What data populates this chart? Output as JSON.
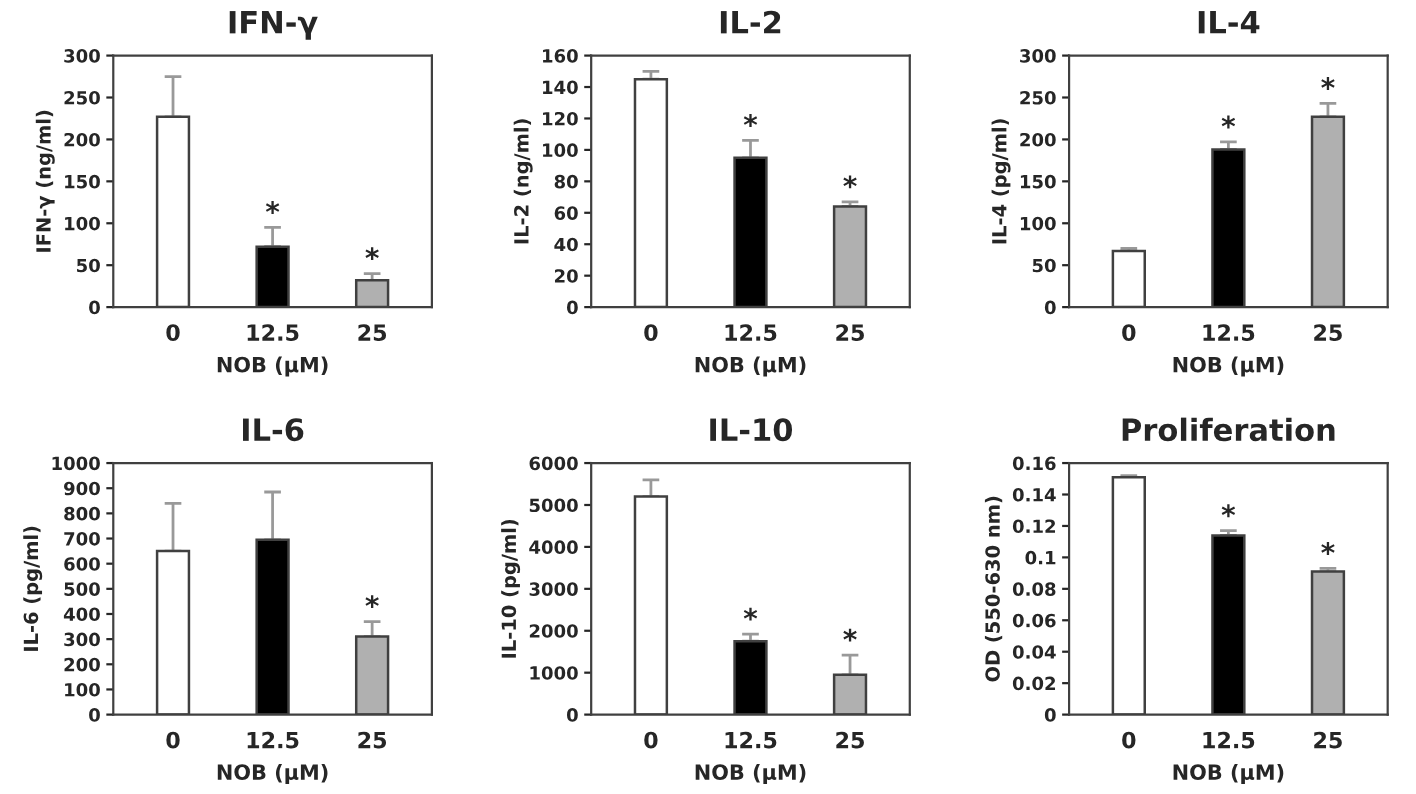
{
  "chart_data": [
    {
      "type": "bar",
      "title": "IFN-γ",
      "xlabel": "NOB (µM)",
      "ylabel": "IFN-γ (ng/ml)",
      "categories": [
        "0",
        "12.5",
        "25"
      ],
      "values": [
        227,
        72,
        32
      ],
      "errors": [
        [
          227,
          275
        ],
        [
          72,
          95
        ],
        [
          32,
          40
        ]
      ],
      "colors": [
        "#ffffff",
        "#000000",
        "#b0b0b0"
      ],
      "ylim": [
        0,
        300
      ],
      "yticks": [
        0,
        50,
        100,
        150,
        200,
        250,
        300
      ],
      "annotations": [
        {
          "text": "*",
          "x": "12.5",
          "y": 95
        },
        {
          "text": "*",
          "x": "25",
          "y": 40
        }
      ]
    },
    {
      "type": "bar",
      "title": "IL-2",
      "xlabel": "NOB (µM)",
      "ylabel": "IL-2 (ng/ml)",
      "categories": [
        "0",
        "12.5",
        "25"
      ],
      "values": [
        145,
        95,
        64
      ],
      "errors": [
        [
          145,
          150
        ],
        [
          95,
          106
        ],
        [
          64,
          67
        ]
      ],
      "colors": [
        "#ffffff",
        "#000000",
        "#b0b0b0"
      ],
      "ylim": [
        0,
        160
      ],
      "yticks": [
        0,
        20,
        40,
        60,
        80,
        100,
        120,
        140,
        160
      ],
      "annotations": [
        {
          "text": "*",
          "x": "12.5",
          "y": 106
        },
        {
          "text": "*",
          "x": "25",
          "y": 67
        }
      ]
    },
    {
      "type": "bar",
      "title": "IL-4",
      "xlabel": "NOB (µM)",
      "ylabel": "IL-4 (pg/ml)",
      "categories": [
        "0",
        "12.5",
        "25"
      ],
      "values": [
        67,
        188,
        227
      ],
      "errors": [
        [
          67,
          70
        ],
        [
          188,
          197
        ],
        [
          227,
          243
        ]
      ],
      "colors": [
        "#ffffff",
        "#000000",
        "#b0b0b0"
      ],
      "ylim": [
        0,
        300
      ],
      "yticks": [
        0,
        50,
        100,
        150,
        200,
        250,
        300
      ],
      "annotations": [
        {
          "text": "*",
          "x": "12.5",
          "y": 197
        },
        {
          "text": "*",
          "x": "25",
          "y": 243
        }
      ]
    },
    {
      "type": "bar",
      "title": "IL-6",
      "xlabel": "NOB (µM)",
      "ylabel": "IL-6 (pg/ml)",
      "categories": [
        "0",
        "12.5",
        "25"
      ],
      "values": [
        650,
        695,
        310
      ],
      "errors": [
        [
          650,
          840
        ],
        [
          695,
          885
        ],
        [
          310,
          370
        ]
      ],
      "colors": [
        "#ffffff",
        "#000000",
        "#b0b0b0"
      ],
      "ylim": [
        0,
        1000
      ],
      "yticks": [
        0,
        100,
        200,
        300,
        400,
        500,
        600,
        700,
        800,
        900,
        1000
      ],
      "annotations": [
        {
          "text": "*",
          "x": "25",
          "y": 370
        }
      ]
    },
    {
      "type": "bar",
      "title": "IL-10",
      "xlabel": "NOB (µM)",
      "ylabel": "IL-10 (pg/ml)",
      "categories": [
        "0",
        "12.5",
        "25"
      ],
      "values": [
        5200,
        1750,
        950
      ],
      "errors": [
        [
          5200,
          5600
        ],
        [
          1750,
          1920
        ],
        [
          950,
          1420
        ]
      ],
      "colors": [
        "#ffffff",
        "#000000",
        "#b0b0b0"
      ],
      "ylim": [
        0,
        6000
      ],
      "yticks": [
        0,
        1000,
        2000,
        3000,
        4000,
        5000,
        6000
      ],
      "annotations": [
        {
          "text": "*",
          "x": "12.5",
          "y": 1920
        },
        {
          "text": "*",
          "x": "25",
          "y": 1420
        }
      ]
    },
    {
      "type": "bar",
      "title": "Proliferation",
      "xlabel": "NOB (µM)",
      "ylabel": "OD (550-630 nm)",
      "categories": [
        "0",
        "12.5",
        "25"
      ],
      "values": [
        0.151,
        0.114,
        0.091
      ],
      "errors": [
        [
          0.151,
          0.152
        ],
        [
          0.114,
          0.117
        ],
        [
          0.091,
          0.093
        ]
      ],
      "colors": [
        "#ffffff",
        "#000000",
        "#b0b0b0"
      ],
      "ylim": [
        0,
        0.16
      ],
      "yticks": [
        0,
        0.02,
        0.04,
        0.06,
        0.08,
        0.1,
        0.12,
        0.14,
        0.16
      ],
      "annotations": [
        {
          "text": "*",
          "x": "12.5",
          "y": 0.117
        },
        {
          "text": "*",
          "x": "25",
          "y": 0.093
        }
      ]
    }
  ]
}
